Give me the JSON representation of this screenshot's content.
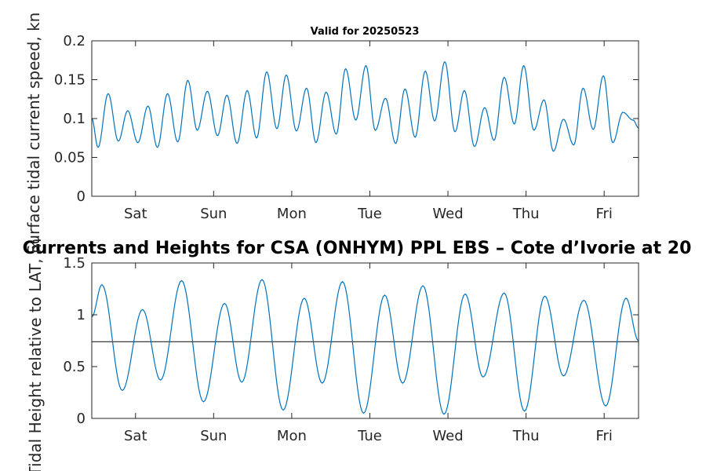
{
  "chart_data": [
    {
      "type": "line",
      "title": "Valid for 20250523",
      "ylabel": "Surface tidal current speed, kn",
      "ylim": [
        0,
        0.2
      ],
      "yticks": [
        "0",
        "0.05",
        "0.1",
        "0.15",
        "0.2"
      ],
      "ytick_values": [
        0,
        0.05,
        0.1,
        0.15,
        0.2
      ],
      "xlim": [
        0,
        7
      ],
      "xticks": [
        "Sat",
        "Sun",
        "Mon",
        "Tue",
        "Wed",
        "Thu",
        "Fri"
      ],
      "xtick_values": [
        0.56,
        1.56,
        2.56,
        3.56,
        4.56,
        5.56,
        6.56
      ],
      "line_color": "#0072bd",
      "series": [
        {
          "x": [
            0.0,
            0.08,
            0.21,
            0.34,
            0.46,
            0.59,
            0.72,
            0.84,
            0.97,
            1.1,
            1.23,
            1.35,
            1.48,
            1.61,
            1.73,
            1.86,
            1.99,
            2.11,
            2.24,
            2.37,
            2.49,
            2.62,
            2.75,
            2.87,
            3.0,
            3.13,
            3.25,
            3.38,
            3.51,
            3.63,
            3.76,
            3.89,
            4.01,
            4.14,
            4.27,
            4.39,
            4.52,
            4.65,
            4.77,
            4.9,
            5.03,
            5.15,
            5.28,
            5.41,
            5.53,
            5.66,
            5.79,
            5.91,
            6.04,
            6.17,
            6.29,
            6.42,
            6.55,
            6.67,
            6.8,
            6.93,
            7.0
          ],
          "y": [
            0.1,
            0.063,
            0.132,
            0.071,
            0.11,
            0.069,
            0.116,
            0.063,
            0.132,
            0.07,
            0.149,
            0.085,
            0.135,
            0.078,
            0.13,
            0.068,
            0.136,
            0.075,
            0.16,
            0.087,
            0.156,
            0.084,
            0.139,
            0.069,
            0.134,
            0.08,
            0.164,
            0.098,
            0.168,
            0.085,
            0.126,
            0.068,
            0.138,
            0.076,
            0.161,
            0.097,
            0.173,
            0.083,
            0.136,
            0.064,
            0.114,
            0.072,
            0.153,
            0.093,
            0.168,
            0.085,
            0.124,
            0.058,
            0.099,
            0.066,
            0.139,
            0.086,
            0.155,
            0.069,
            0.108,
            0.098,
            0.088
          ]
        }
      ]
    },
    {
      "type": "line",
      "title": "Currents and Heights for CSA (ONHYM) PPL EBS  – Cote d’Ivorie at 20",
      "ylabel": "Tidal Height relative to LAT, m",
      "ylim": [
        0,
        1.5
      ],
      "yticks": [
        "0",
        "0.5",
        "1",
        "1.5"
      ],
      "ytick_values": [
        0,
        0.5,
        1,
        1.5
      ],
      "xlim": [
        0,
        7
      ],
      "xticks": [
        "Sat",
        "Sun",
        "Mon",
        "Tue",
        "Wed",
        "Thu",
        "Fri"
      ],
      "xtick_values": [
        0.56,
        1.56,
        2.56,
        3.56,
        4.56,
        5.56,
        6.56
      ],
      "line_color": "#0072bd",
      "reference_line": {
        "y": 0.74,
        "color": "#262626"
      },
      "series": [
        {
          "x": [
            0.0,
            0.13,
            0.39,
            0.65,
            0.88,
            1.15,
            1.43,
            1.7,
            1.92,
            2.18,
            2.45,
            2.72,
            2.95,
            3.21,
            3.48,
            3.75,
            3.98,
            4.24,
            4.51,
            4.78,
            5.01,
            5.28,
            5.54,
            5.8,
            6.04,
            6.3,
            6.58,
            6.84,
            7.0
          ],
          "y": [
            0.98,
            1.29,
            0.27,
            1.05,
            0.37,
            1.33,
            0.16,
            1.11,
            0.35,
            1.34,
            0.08,
            1.16,
            0.34,
            1.32,
            0.05,
            1.19,
            0.34,
            1.28,
            0.04,
            1.2,
            0.4,
            1.21,
            0.07,
            1.18,
            0.41,
            1.14,
            0.12,
            1.16,
            0.75
          ]
        }
      ]
    }
  ]
}
